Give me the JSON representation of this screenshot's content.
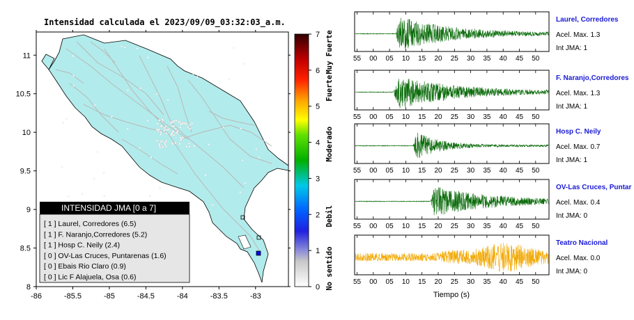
{
  "map": {
    "title": "Intensidad calculada el 2023/09/09_03:32:03_a.m.",
    "x_ticks": [
      "-86",
      "-85.5",
      "-85",
      "-84.5",
      "-84",
      "-83.5",
      "-83"
    ],
    "y_ticks": [
      "11",
      "10.5",
      "10",
      "9.5",
      "9",
      "8.5",
      "8"
    ],
    "legend": {
      "title": "INTENSIDAD JMA [0 a 7]",
      "items": [
        "[ 1 ]  Laurel, Corredores (6.5)",
        "[ 1 ]  F. Naranjo,Corredores (5.2)",
        "[ 1 ]  Hosp C. Neily (2.4)",
        "[ 0 ]  OV-Las Cruces, Puntarenas (1.6)",
        "[ 0 ]  Ebais Rio Claro (0.9)",
        "[ 0 ]  Lic F Alajuela, Osa (0.6)"
      ]
    }
  },
  "colorbar": {
    "ticks": [
      "0",
      "1",
      "2",
      "3",
      "4",
      "5",
      "6",
      "7"
    ],
    "labels": [
      "No sentido",
      "Debil",
      "Moderado",
      "Fuerte",
      "Muy Fuerte"
    ]
  },
  "stations": [
    {
      "name": "Laurel, Corredores",
      "accel": "Acel. Max. 1.3",
      "jma": "Int JMA: 1",
      "color": "#0a6b0a",
      "onset": 0.21,
      "peak": 0.95,
      "decay": 0.28
    },
    {
      "name": "F. Naranjo,Corredores",
      "accel": "Acel. Max. 1.3",
      "jma": "Int JMA: 1",
      "color": "#0a6b0a",
      "onset": 0.2,
      "peak": 0.95,
      "decay": 0.3
    },
    {
      "name": "Hosp C. Neily",
      "accel": "Acel. Max. 0.7",
      "jma": "Int JMA: 1",
      "color": "#0a6b0a",
      "onset": 0.3,
      "peak": 0.85,
      "decay": 0.12
    },
    {
      "name": "OV-Las Cruces, Puntar",
      "accel": "Acel. Max. 0.4",
      "jma": "Int JMA: 0",
      "color": "#0a6b0a",
      "onset": 0.39,
      "peak": 0.85,
      "decay": 0.3
    },
    {
      "name": "Teatro Nacional",
      "accel": "Acel. Max. 0.0",
      "jma": "Int JMA: 0",
      "color": "#f2a800",
      "onset": 0.0,
      "peak": 0.75,
      "decay": 0.6
    }
  ],
  "seismo": {
    "x_ticks": [
      "55",
      "00",
      "05",
      "10",
      "15",
      "20",
      "25",
      "30",
      "35",
      "40",
      "45",
      "50"
    ],
    "xlabel": "Tiempo (s)"
  },
  "colors": {
    "land": "#b2ebeb",
    "border": "#000000",
    "roads": "#b8b8b8",
    "legend_header": "#000000",
    "legend_bg": "#e6e6e6"
  },
  "chart_data": [
    {
      "type": "heatmap",
      "title": "Intensidad calculada el 2023/09/09_03:32:03_a.m.",
      "xlabel": "",
      "ylabel": "",
      "xlim": [
        -86,
        -82.55
      ],
      "ylim": [
        8,
        11.3
      ],
      "colorbar_range": [
        0,
        7
      ],
      "stations_listed": [
        {
          "name": "Laurel, Corredores",
          "jma": 1,
          "value": 6.5
        },
        {
          "name": "F. Naranjo,Corredores",
          "jma": 1,
          "value": 5.2
        },
        {
          "name": "Hosp C. Neily",
          "jma": 1,
          "value": 2.4
        },
        {
          "name": "OV-Las Cruces, Puntarenas",
          "jma": 0,
          "value": 1.6
        },
        {
          "name": "Ebais Rio Claro",
          "jma": 0,
          "value": 0.9
        },
        {
          "name": "Lic F Alajuela, Osa",
          "jma": 0,
          "value": 0.6
        }
      ]
    },
    {
      "type": "line",
      "xlabel": "Tiempo (s)",
      "series": [
        {
          "name": "Laurel, Corredores",
          "accel_max": 1.3,
          "jma": 1
        },
        {
          "name": "F. Naranjo,Corredores",
          "accel_max": 1.3,
          "jma": 1
        },
        {
          "name": "Hosp C. Neily",
          "accel_max": 0.7,
          "jma": 1
        },
        {
          "name": "OV-Las Cruces, Puntar",
          "accel_max": 0.4,
          "jma": 0
        },
        {
          "name": "Teatro Nacional",
          "accel_max": 0.0,
          "jma": 0
        }
      ]
    }
  ]
}
